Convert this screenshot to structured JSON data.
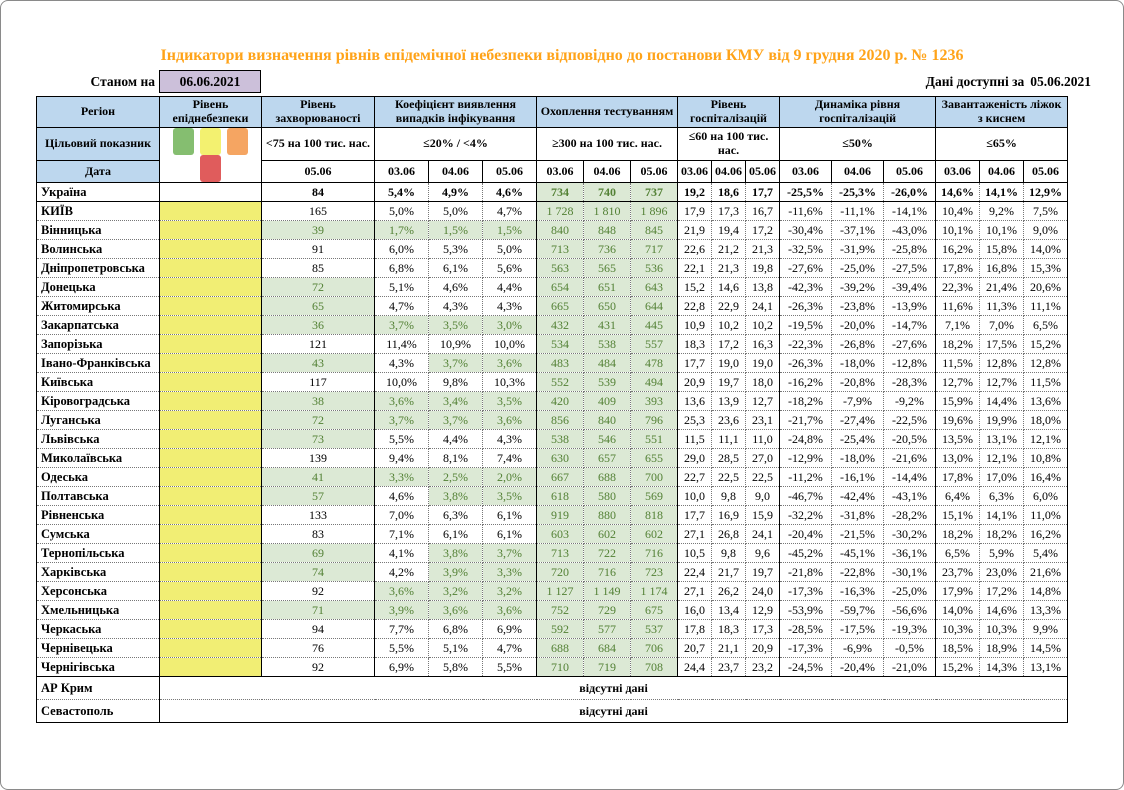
{
  "title": "Індикатори визначення рівнів епідемічної небезпеки відповідно до постанови КМУ від 9 грудня 2020 р. № 1236",
  "as_of": {
    "label": "Станом на",
    "date": "06.06.2021"
  },
  "available": {
    "label": "Дані доступні за",
    "date": "05.06.2021"
  },
  "header": {
    "region": "Регіон",
    "target_label": "Цільовий показник",
    "date_label": "Дата"
  },
  "dates": [
    "03.06",
    "04.06",
    "05.06"
  ],
  "groups": [
    {
      "label": "Рівень епіднебезпеки"
    },
    {
      "label": "Рівень захворюваності",
      "target": "<75 на 100 тис. нас.",
      "date": "05.06"
    },
    {
      "label": "Коефіцієнт виявлення випадків інфікування",
      "target": "≤20% / <4%"
    },
    {
      "label": "Охоплення тестуванням",
      "target": "≥300 на 100 тис. нас."
    },
    {
      "label": "Рівень госпіталізацій",
      "target": "≤60 на 100 тис. нас."
    },
    {
      "label": "Динаміка рівня госпіталізацій",
      "target": "≤50%"
    },
    {
      "label": "Завантаженість ліжок з киснем",
      "target": "≤65%"
    }
  ],
  "legend": [
    {
      "name": "level-green-swatch",
      "color": "#85BE70"
    },
    {
      "name": "level-yellow-swatch",
      "color": "#F3F170"
    },
    {
      "name": "level-orange-swatch",
      "color": "#F5A562"
    },
    {
      "name": "level-red-swatch",
      "color": "#E05C5C"
    }
  ],
  "colors": {
    "header_bg": "#BDD7EE",
    "yellow_level": "#F1EE74",
    "green_bg": "#DCE9D5",
    "green_text": "#538135",
    "title_orange": "#FFA319",
    "date_box_bg": "#CCC0DA"
  },
  "rows": [
    {
      "region": "Україна",
      "bold": true,
      "yellow": false,
      "morb": {
        "v": "84",
        "hl": false
      },
      "det": [
        {
          "v": "5,4%",
          "hl": false
        },
        {
          "v": "4,9%",
          "hl": false
        },
        {
          "v": "4,6%",
          "hl": false
        }
      ],
      "test": [
        "734",
        "740",
        "737"
      ],
      "hosp": [
        "19,2",
        "18,6",
        "17,7"
      ],
      "dyn": [
        "-25,5%",
        "-25,3%",
        "-26,0%"
      ],
      "beds": [
        "14,6%",
        "14,1%",
        "12,9%"
      ]
    },
    {
      "region": "КИЇВ",
      "yellow": true,
      "morb": {
        "v": "165",
        "hl": false
      },
      "det": [
        {
          "v": "5,0%",
          "hl": false
        },
        {
          "v": "5,0%",
          "hl": false
        },
        {
          "v": "4,7%",
          "hl": false
        }
      ],
      "test": [
        "1 728",
        "1 810",
        "1 896"
      ],
      "hosp": [
        "17,9",
        "17,3",
        "16,7"
      ],
      "dyn": [
        "-11,6%",
        "-11,1%",
        "-14,1%"
      ],
      "beds": [
        "10,4%",
        "9,2%",
        "7,5%"
      ]
    },
    {
      "region": "Вінницька",
      "yellow": true,
      "morb": {
        "v": "39",
        "hl": true
      },
      "det": [
        {
          "v": "1,7%",
          "hl": true
        },
        {
          "v": "1,5%",
          "hl": true
        },
        {
          "v": "1,5%",
          "hl": true
        }
      ],
      "test": [
        "840",
        "848",
        "845"
      ],
      "hosp": [
        "21,9",
        "19,4",
        "17,2"
      ],
      "dyn": [
        "-30,4%",
        "-37,1%",
        "-43,0%"
      ],
      "beds": [
        "10,1%",
        "10,1%",
        "9,0%"
      ]
    },
    {
      "region": "Волинська",
      "yellow": true,
      "morb": {
        "v": "91",
        "hl": false
      },
      "det": [
        {
          "v": "6,0%",
          "hl": false
        },
        {
          "v": "5,3%",
          "hl": false
        },
        {
          "v": "5,0%",
          "hl": false
        }
      ],
      "test": [
        "713",
        "736",
        "717"
      ],
      "hosp": [
        "22,6",
        "21,2",
        "21,3"
      ],
      "dyn": [
        "-32,5%",
        "-31,9%",
        "-25,8%"
      ],
      "beds": [
        "16,2%",
        "15,8%",
        "14,0%"
      ]
    },
    {
      "region": "Дніпропетровська",
      "yellow": true,
      "morb": {
        "v": "85",
        "hl": false
      },
      "det": [
        {
          "v": "6,8%",
          "hl": false
        },
        {
          "v": "6,1%",
          "hl": false
        },
        {
          "v": "5,6%",
          "hl": false
        }
      ],
      "test": [
        "563",
        "565",
        "536"
      ],
      "hosp": [
        "22,1",
        "21,3",
        "19,8"
      ],
      "dyn": [
        "-27,6%",
        "-25,0%",
        "-27,5%"
      ],
      "beds": [
        "17,8%",
        "16,8%",
        "15,3%"
      ]
    },
    {
      "region": "Донецька",
      "yellow": true,
      "morb": {
        "v": "72",
        "hl": true
      },
      "det": [
        {
          "v": "5,1%",
          "hl": false
        },
        {
          "v": "4,6%",
          "hl": false
        },
        {
          "v": "4,4%",
          "hl": false
        }
      ],
      "test": [
        "654",
        "651",
        "643"
      ],
      "hosp": [
        "15,2",
        "14,6",
        "13,8"
      ],
      "dyn": [
        "-42,3%",
        "-39,2%",
        "-39,4%"
      ],
      "beds": [
        "22,3%",
        "21,4%",
        "20,6%"
      ]
    },
    {
      "region": "Житомирська",
      "yellow": true,
      "morb": {
        "v": "65",
        "hl": true
      },
      "det": [
        {
          "v": "4,7%",
          "hl": false
        },
        {
          "v": "4,3%",
          "hl": false
        },
        {
          "v": "4,3%",
          "hl": false
        }
      ],
      "test": [
        "665",
        "650",
        "644"
      ],
      "hosp": [
        "22,8",
        "22,9",
        "24,1"
      ],
      "dyn": [
        "-26,3%",
        "-23,8%",
        "-13,9%"
      ],
      "beds": [
        "11,6%",
        "11,3%",
        "11,1%"
      ]
    },
    {
      "region": "Закарпатська",
      "yellow": true,
      "morb": {
        "v": "36",
        "hl": true
      },
      "det": [
        {
          "v": "3,7%",
          "hl": true
        },
        {
          "v": "3,5%",
          "hl": true
        },
        {
          "v": "3,0%",
          "hl": true
        }
      ],
      "test": [
        "432",
        "431",
        "445"
      ],
      "hosp": [
        "10,9",
        "10,2",
        "10,2"
      ],
      "dyn": [
        "-19,5%",
        "-20,0%",
        "-14,7%"
      ],
      "beds": [
        "7,1%",
        "7,0%",
        "6,5%"
      ]
    },
    {
      "region": "Запорізька",
      "yellow": true,
      "morb": {
        "v": "121",
        "hl": false
      },
      "det": [
        {
          "v": "11,4%",
          "hl": false
        },
        {
          "v": "10,9%",
          "hl": false
        },
        {
          "v": "10,0%",
          "hl": false
        }
      ],
      "test": [
        "534",
        "538",
        "557"
      ],
      "hosp": [
        "18,3",
        "17,2",
        "16,3"
      ],
      "dyn": [
        "-22,3%",
        "-26,8%",
        "-27,6%"
      ],
      "beds": [
        "18,2%",
        "17,5%",
        "15,2%"
      ]
    },
    {
      "region": "Івано-Франківська",
      "yellow": true,
      "morb": {
        "v": "43",
        "hl": true
      },
      "det": [
        {
          "v": "4,3%",
          "hl": false
        },
        {
          "v": "3,7%",
          "hl": true
        },
        {
          "v": "3,6%",
          "hl": true
        }
      ],
      "test": [
        "483",
        "484",
        "478"
      ],
      "hosp": [
        "17,7",
        "19,0",
        "19,0"
      ],
      "dyn": [
        "-26,3%",
        "-18,0%",
        "-12,8%"
      ],
      "beds": [
        "11,5%",
        "12,8%",
        "12,8%"
      ]
    },
    {
      "region": "Київська",
      "yellow": true,
      "morb": {
        "v": "117",
        "hl": false
      },
      "det": [
        {
          "v": "10,0%",
          "hl": false
        },
        {
          "v": "9,8%",
          "hl": false
        },
        {
          "v": "10,3%",
          "hl": false
        }
      ],
      "test": [
        "552",
        "539",
        "494"
      ],
      "hosp": [
        "20,9",
        "19,7",
        "18,0"
      ],
      "dyn": [
        "-16,2%",
        "-20,8%",
        "-28,3%"
      ],
      "beds": [
        "12,7%",
        "12,7%",
        "11,5%"
      ]
    },
    {
      "region": "Кіровоградська",
      "yellow": true,
      "morb": {
        "v": "38",
        "hl": true
      },
      "det": [
        {
          "v": "3,6%",
          "hl": true
        },
        {
          "v": "3,4%",
          "hl": true
        },
        {
          "v": "3,5%",
          "hl": true
        }
      ],
      "test": [
        "420",
        "409",
        "393"
      ],
      "hosp": [
        "13,6",
        "13,9",
        "12,7"
      ],
      "dyn": [
        "-18,2%",
        "-7,9%",
        "-9,2%"
      ],
      "beds": [
        "15,9%",
        "14,4%",
        "13,6%"
      ]
    },
    {
      "region": "Луганська",
      "yellow": true,
      "morb": {
        "v": "72",
        "hl": true
      },
      "det": [
        {
          "v": "3,7%",
          "hl": true
        },
        {
          "v": "3,7%",
          "hl": true
        },
        {
          "v": "3,6%",
          "hl": true
        }
      ],
      "test": [
        "856",
        "840",
        "796"
      ],
      "hosp": [
        "25,3",
        "23,6",
        "23,1"
      ],
      "dyn": [
        "-21,7%",
        "-27,4%",
        "-22,5%"
      ],
      "beds": [
        "19,6%",
        "19,9%",
        "18,0%"
      ]
    },
    {
      "region": "Львівська",
      "yellow": true,
      "morb": {
        "v": "73",
        "hl": true
      },
      "det": [
        {
          "v": "5,5%",
          "hl": false
        },
        {
          "v": "4,4%",
          "hl": false
        },
        {
          "v": "4,3%",
          "hl": false
        }
      ],
      "test": [
        "538",
        "546",
        "551"
      ],
      "hosp": [
        "11,5",
        "11,1",
        "11,0"
      ],
      "dyn": [
        "-24,8%",
        "-25,4%",
        "-20,5%"
      ],
      "beds": [
        "13,5%",
        "13,1%",
        "12,1%"
      ]
    },
    {
      "region": "Миколаївська",
      "yellow": true,
      "morb": {
        "v": "139",
        "hl": false
      },
      "det": [
        {
          "v": "9,4%",
          "hl": false
        },
        {
          "v": "8,1%",
          "hl": false
        },
        {
          "v": "7,4%",
          "hl": false
        }
      ],
      "test": [
        "630",
        "657",
        "655"
      ],
      "hosp": [
        "29,0",
        "28,5",
        "27,0"
      ],
      "dyn": [
        "-12,9%",
        "-18,0%",
        "-21,6%"
      ],
      "beds": [
        "13,0%",
        "12,1%",
        "10,8%"
      ]
    },
    {
      "region": "Одеська",
      "yellow": true,
      "morb": {
        "v": "41",
        "hl": true
      },
      "det": [
        {
          "v": "3,3%",
          "hl": true
        },
        {
          "v": "2,5%",
          "hl": true
        },
        {
          "v": "2,0%",
          "hl": true
        }
      ],
      "test": [
        "667",
        "688",
        "700"
      ],
      "hosp": [
        "22,7",
        "22,5",
        "22,5"
      ],
      "dyn": [
        "-11,2%",
        "-16,1%",
        "-14,4%"
      ],
      "beds": [
        "17,8%",
        "17,0%",
        "16,4%"
      ]
    },
    {
      "region": "Полтавська",
      "yellow": true,
      "morb": {
        "v": "57",
        "hl": true
      },
      "det": [
        {
          "v": "4,6%",
          "hl": false
        },
        {
          "v": "3,8%",
          "hl": true
        },
        {
          "v": "3,5%",
          "hl": true
        }
      ],
      "test": [
        "618",
        "580",
        "569"
      ],
      "hosp": [
        "10,0",
        "9,8",
        "9,0"
      ],
      "dyn": [
        "-46,7%",
        "-42,4%",
        "-43,1%"
      ],
      "beds": [
        "6,4%",
        "6,3%",
        "6,0%"
      ]
    },
    {
      "region": "Рівненська",
      "yellow": true,
      "morb": {
        "v": "133",
        "hl": false
      },
      "det": [
        {
          "v": "7,0%",
          "hl": false
        },
        {
          "v": "6,3%",
          "hl": false
        },
        {
          "v": "6,1%",
          "hl": false
        }
      ],
      "test": [
        "919",
        "880",
        "818"
      ],
      "hosp": [
        "17,7",
        "16,9",
        "15,9"
      ],
      "dyn": [
        "-32,2%",
        "-31,8%",
        "-28,2%"
      ],
      "beds": [
        "15,1%",
        "14,1%",
        "11,0%"
      ]
    },
    {
      "region": "Сумська",
      "yellow": true,
      "morb": {
        "v": "83",
        "hl": false
      },
      "det": [
        {
          "v": "7,1%",
          "hl": false
        },
        {
          "v": "6,1%",
          "hl": false
        },
        {
          "v": "6,1%",
          "hl": false
        }
      ],
      "test": [
        "603",
        "602",
        "602"
      ],
      "hosp": [
        "27,1",
        "26,8",
        "24,1"
      ],
      "dyn": [
        "-20,4%",
        "-21,5%",
        "-30,2%"
      ],
      "beds": [
        "18,2%",
        "18,2%",
        "16,2%"
      ]
    },
    {
      "region": "Тернопільська",
      "yellow": true,
      "morb": {
        "v": "69",
        "hl": true
      },
      "det": [
        {
          "v": "4,1%",
          "hl": false
        },
        {
          "v": "3,8%",
          "hl": true
        },
        {
          "v": "3,7%",
          "hl": true
        }
      ],
      "test": [
        "713",
        "722",
        "716"
      ],
      "hosp": [
        "10,5",
        "9,8",
        "9,6"
      ],
      "dyn": [
        "-45,2%",
        "-45,1%",
        "-36,1%"
      ],
      "beds": [
        "6,5%",
        "5,9%",
        "5,4%"
      ]
    },
    {
      "region": "Харківська",
      "yellow": true,
      "morb": {
        "v": "74",
        "hl": true
      },
      "det": [
        {
          "v": "4,2%",
          "hl": false
        },
        {
          "v": "3,9%",
          "hl": true
        },
        {
          "v": "3,3%",
          "hl": true
        }
      ],
      "test": [
        "720",
        "716",
        "723"
      ],
      "hosp": [
        "22,4",
        "21,7",
        "19,7"
      ],
      "dyn": [
        "-21,8%",
        "-22,8%",
        "-30,1%"
      ],
      "beds": [
        "23,7%",
        "23,0%",
        "21,6%"
      ]
    },
    {
      "region": "Херсонська",
      "yellow": true,
      "morb": {
        "v": "92",
        "hl": false
      },
      "det": [
        {
          "v": "3,6%",
          "hl": true
        },
        {
          "v": "3,2%",
          "hl": true
        },
        {
          "v": "3,2%",
          "hl": true
        }
      ],
      "test": [
        "1 127",
        "1 149",
        "1 174"
      ],
      "hosp": [
        "27,1",
        "26,2",
        "24,0"
      ],
      "dyn": [
        "-17,3%",
        "-16,3%",
        "-25,0%"
      ],
      "beds": [
        "17,9%",
        "17,2%",
        "14,8%"
      ]
    },
    {
      "region": "Хмельницька",
      "yellow": true,
      "morb": {
        "v": "71",
        "hl": true
      },
      "det": [
        {
          "v": "3,9%",
          "hl": true
        },
        {
          "v": "3,6%",
          "hl": true
        },
        {
          "v": "3,6%",
          "hl": true
        }
      ],
      "test": [
        "752",
        "729",
        "675"
      ],
      "hosp": [
        "16,0",
        "13,4",
        "12,9"
      ],
      "dyn": [
        "-53,9%",
        "-59,7%",
        "-56,6%"
      ],
      "beds": [
        "14,0%",
        "14,6%",
        "13,3%"
      ]
    },
    {
      "region": "Черкаська",
      "yellow": true,
      "morb": {
        "v": "94",
        "hl": false
      },
      "det": [
        {
          "v": "7,7%",
          "hl": false
        },
        {
          "v": "6,8%",
          "hl": false
        },
        {
          "v": "6,9%",
          "hl": false
        }
      ],
      "test": [
        "592",
        "577",
        "537"
      ],
      "hosp": [
        "17,8",
        "18,3",
        "17,3"
      ],
      "dyn": [
        "-28,5%",
        "-17,5%",
        "-19,3%"
      ],
      "beds": [
        "10,3%",
        "10,3%",
        "9,9%"
      ]
    },
    {
      "region": "Чернівецька",
      "yellow": true,
      "morb": {
        "v": "76",
        "hl": false
      },
      "det": [
        {
          "v": "5,5%",
          "hl": false
        },
        {
          "v": "5,1%",
          "hl": false
        },
        {
          "v": "4,7%",
          "hl": false
        }
      ],
      "test": [
        "688",
        "684",
        "706"
      ],
      "hosp": [
        "20,7",
        "21,1",
        "20,9"
      ],
      "dyn": [
        "-17,3%",
        "-6,9%",
        "-0,5%"
      ],
      "beds": [
        "18,5%",
        "18,9%",
        "14,5%"
      ]
    },
    {
      "region": "Чернігівська",
      "yellow": true,
      "morb": {
        "v": "92",
        "hl": false
      },
      "det": [
        {
          "v": "6,9%",
          "hl": false
        },
        {
          "v": "5,8%",
          "hl": false
        },
        {
          "v": "5,5%",
          "hl": false
        }
      ],
      "test": [
        "710",
        "719",
        "708"
      ],
      "hosp": [
        "24,4",
        "23,7",
        "23,2"
      ],
      "dyn": [
        "-24,5%",
        "-20,4%",
        "-21,0%"
      ],
      "beds": [
        "15,2%",
        "14,3%",
        "13,1%"
      ]
    }
  ],
  "no_data_rows": [
    {
      "region": "АР Крим",
      "text": "відсутні дані"
    },
    {
      "region": "Севастополь",
      "text": "відсутні дані"
    }
  ]
}
